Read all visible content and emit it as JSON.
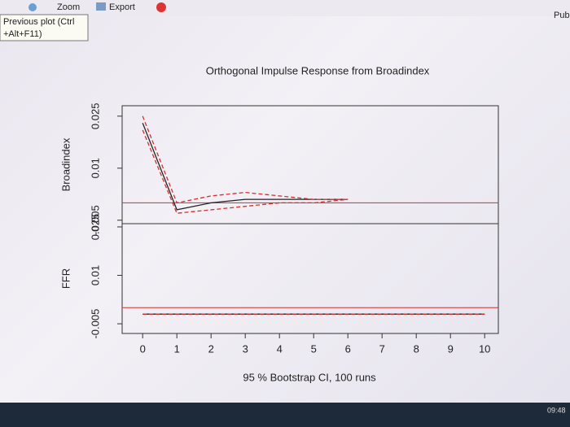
{
  "toolbar": {
    "zoom": "Zoom",
    "export": "Export",
    "tooltip": [
      "Previous plot (Ctrl",
      "+Alt+F11)"
    ],
    "publish": "Publi"
  },
  "taskbar": {
    "clock": "09:48"
  },
  "chart_data": {
    "type": "line",
    "title": "Orthogonal Impulse Response from Broadindex",
    "xlabel": "95 % Bootstrap CI, 100 runs",
    "x": [
      0,
      1,
      2,
      3,
      4,
      5,
      6,
      7,
      8,
      9,
      10
    ],
    "xlim": [
      -0.6,
      10.4
    ],
    "xticks": [
      0,
      1,
      2,
      3,
      4,
      5,
      6,
      7,
      8,
      9,
      10
    ],
    "panels": [
      {
        "ylabel": "Broadindex",
        "ylim": [
          -0.006,
          0.028
        ],
        "yticks": [
          -0.005,
          0.01,
          0.025
        ],
        "series": [
          {
            "color": "#222222",
            "dash": false,
            "values": [
              0.023,
              -0.002,
              0.0,
              0.001,
              0.001,
              0.001,
              0.001,
              null,
              null,
              null,
              null
            ]
          },
          {
            "color": "#d03030",
            "dash": true,
            "values": [
              0.025,
              0.0,
              0.002,
              0.003,
              0.002,
              0.001,
              0.001,
              null,
              null,
              null,
              null
            ]
          },
          {
            "color": "#d03030",
            "dash": true,
            "values": [
              0.021,
              -0.003,
              -0.002,
              -0.001,
              0.0,
              0.0,
              0.001,
              null,
              null,
              null,
              null
            ]
          }
        ]
      },
      {
        "ylabel": "FFR",
        "ylim": [
          -0.008,
          0.026
        ],
        "yticks": [
          -0.005,
          0.01,
          0.025
        ],
        "series": [
          {
            "color": "#222222",
            "dash": false,
            "values": [
              -0.002,
              -0.002,
              -0.002,
              -0.002,
              -0.002,
              -0.002,
              -0.002,
              -0.002,
              -0.002,
              -0.002,
              -0.002
            ]
          },
          {
            "color": "#d03030",
            "dash": true,
            "values": [
              -0.002,
              -0.002,
              -0.002,
              -0.002,
              -0.002,
              -0.002,
              -0.002,
              -0.002,
              -0.002,
              -0.002,
              -0.002
            ]
          },
          {
            "color": "#d03030",
            "dash": true,
            "values": [
              -0.002,
              -0.002,
              -0.002,
              -0.002,
              -0.002,
              -0.002,
              -0.002,
              -0.002,
              -0.002,
              -0.002,
              -0.002
            ]
          }
        ]
      }
    ]
  }
}
